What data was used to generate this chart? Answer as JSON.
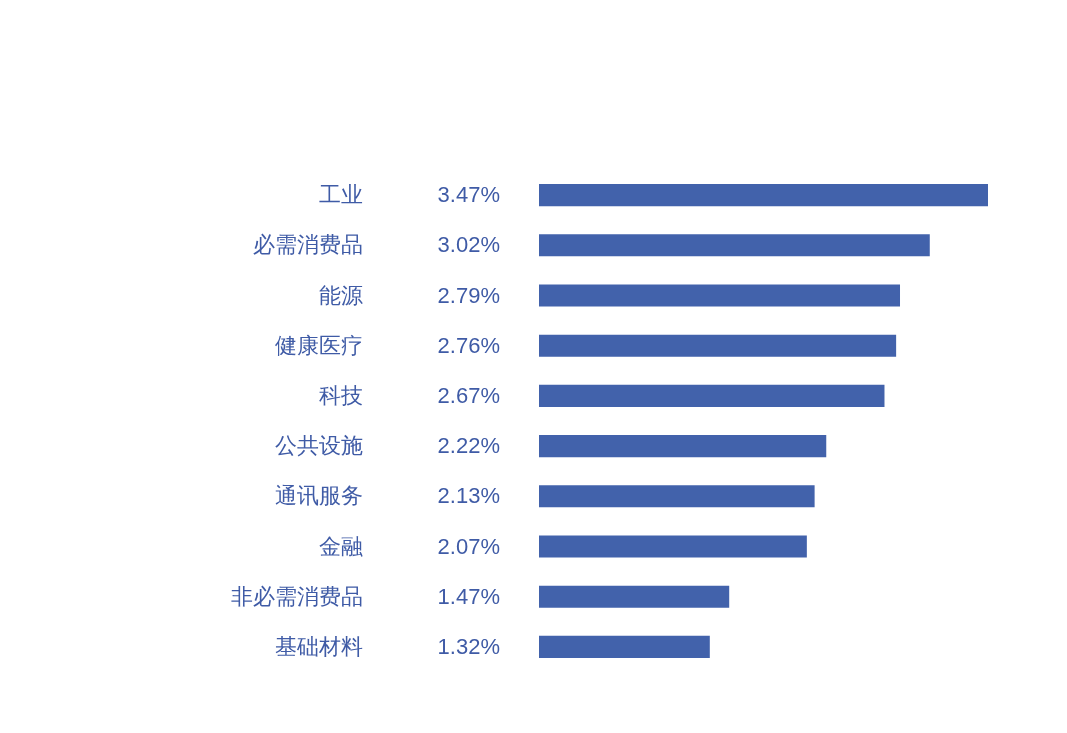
{
  "chart_data": {
    "type": "bar",
    "orientation": "horizontal",
    "categories": [
      "工业",
      "必需消费品",
      "能源",
      "健康医疗",
      "科技",
      "公共设施",
      "通讯服务",
      "金融",
      "非必需消费品",
      "基础材料"
    ],
    "values": [
      3.47,
      3.02,
      2.79,
      2.76,
      2.67,
      2.22,
      2.13,
      2.07,
      1.47,
      1.32
    ],
    "value_labels": [
      "3.47%",
      "3.02%",
      "2.79%",
      "2.76%",
      "2.67%",
      "2.22%",
      "2.13%",
      "2.07%",
      "1.47%",
      "1.32%"
    ],
    "color": "#4262ab",
    "xlim": [
      0,
      3.47
    ],
    "tick_labels": "y"
  }
}
